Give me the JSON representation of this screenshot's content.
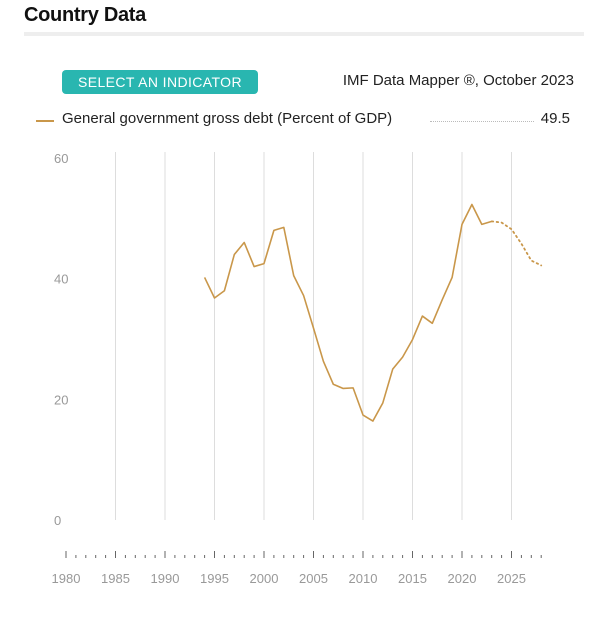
{
  "page": {
    "title": "Country Data"
  },
  "toolbar": {
    "select_indicator_label": "SELECT AN INDICATOR",
    "source_text": "IMF Data Mapper ®, October 2023"
  },
  "colors": {
    "accent": "#29b6b0",
    "series": "#c9974a",
    "grid": "#dddddd",
    "axis_text": "#999999"
  },
  "legend": {
    "label": "General government gross debt (Percent of GDP)",
    "value": "49.5"
  },
  "chart_data": {
    "type": "line",
    "title": "",
    "xlabel": "",
    "ylabel": "",
    "xlim": [
      1980,
      2028
    ],
    "ylim": [
      0,
      60
    ],
    "y_ticks": [
      0,
      20,
      40,
      60
    ],
    "x_ticks": [
      1980,
      1985,
      1990,
      1995,
      2000,
      2005,
      2010,
      2015,
      2020,
      2025
    ],
    "grid": "vertical",
    "legend_position": "top-left",
    "series": [
      {
        "name": "General government gross debt (Percent of GDP)",
        "x": [
          1994,
          1995,
          1996,
          1997,
          1998,
          1999,
          2000,
          2001,
          2002,
          2003,
          2004,
          2005,
          2006,
          2007,
          2008,
          2009,
          2010,
          2011,
          2012,
          2013,
          2014,
          2015,
          2016,
          2017,
          2018,
          2019,
          2020,
          2021,
          2022,
          2023
        ],
        "values": [
          40.2,
          36.8,
          38.0,
          44.0,
          46.0,
          42.0,
          42.5,
          48.0,
          48.5,
          40.5,
          37.2,
          31.8,
          26.3,
          22.5,
          21.8,
          21.9,
          17.4,
          16.4,
          19.4,
          25.0,
          27.0,
          29.9,
          33.8,
          32.6,
          36.5,
          40.2,
          49.0,
          52.3,
          49.0,
          49.5
        ]
      },
      {
        "name": "",
        "projection": true,
        "x": [
          2023,
          2024,
          2025,
          2026,
          2027,
          2028
        ],
        "values": [
          49.5,
          49.3,
          48.2,
          45.8,
          43.0,
          42.2
        ]
      }
    ]
  }
}
